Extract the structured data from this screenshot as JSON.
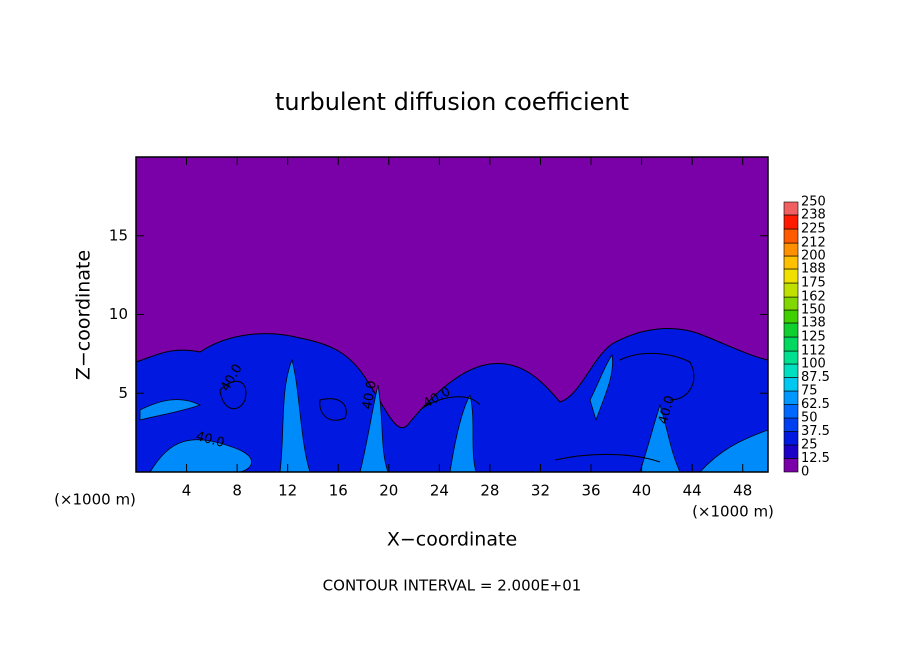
{
  "chart_data": {
    "type": "contour",
    "title": "turbulent diffusion coefficient",
    "x_label": "X−coordinate",
    "y_label": "Z−coordinate",
    "x_unit_left": "(×1000 m)",
    "x_unit_right": "(×1000 m)",
    "footer": "CONTOUR INTERVAL = 2.000E+01",
    "xlim": [
      0,
      50
    ],
    "ylim": [
      0,
      20
    ],
    "xticks": [
      4,
      8,
      12,
      16,
      20,
      24,
      28,
      32,
      36,
      40,
      44,
      48
    ],
    "yticks": [
      5,
      10,
      15
    ],
    "contour_label": {
      "value": 40,
      "label": "40.0"
    },
    "colorbar": {
      "levels": [
        0,
        12.5,
        25,
        37.5,
        50,
        62.5,
        75,
        87.5,
        100,
        112,
        125,
        138,
        150,
        162,
        175,
        188,
        200,
        212,
        225,
        238,
        250
      ],
      "colors": [
        "#7a00a8",
        "#1c00c8",
        "#0018e0",
        "#0040f0",
        "#0068ff",
        "#0098ff",
        "#00c8f0",
        "#00e0c0",
        "#00e090",
        "#00d860",
        "#10d030",
        "#40d000",
        "#80d800",
        "#c0e000",
        "#f0e000",
        "#ffc000",
        "#ff9000",
        "#ff5a00",
        "#ff1a00",
        "#f06060"
      ]
    }
  }
}
